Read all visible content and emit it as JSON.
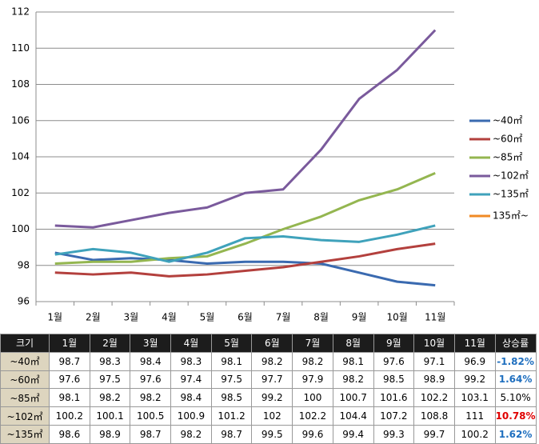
{
  "chart_data": {
    "type": "line",
    "categories": [
      "1월",
      "2월",
      "3월",
      "4월",
      "5월",
      "6월",
      "7월",
      "8월",
      "9월",
      "10월",
      "11월"
    ],
    "series": [
      {
        "name": "~40㎡",
        "color": "#3a6ab0",
        "values": [
          98.7,
          98.3,
          98.4,
          98.3,
          98.1,
          98.2,
          98.2,
          98.1,
          97.6,
          97.1,
          96.9
        ]
      },
      {
        "name": "~60㎡",
        "color": "#b3403d",
        "values": [
          97.6,
          97.5,
          97.6,
          97.4,
          97.5,
          97.7,
          97.9,
          98.2,
          98.5,
          98.9,
          99.2
        ]
      },
      {
        "name": "~85㎡",
        "color": "#94b650",
        "values": [
          98.1,
          98.2,
          98.2,
          98.4,
          98.5,
          99.2,
          100,
          100.7,
          101.6,
          102.2,
          103.1
        ]
      },
      {
        "name": "~102㎡",
        "color": "#7a5a9c",
        "values": [
          100.2,
          100.1,
          100.5,
          100.9,
          101.2,
          102,
          102.2,
          104.4,
          107.2,
          108.8,
          111
        ]
      },
      {
        "name": "~135㎡",
        "color": "#3fa2bb",
        "values": [
          98.6,
          98.9,
          98.7,
          98.2,
          98.7,
          99.5,
          99.6,
          99.4,
          99.3,
          99.7,
          100.2
        ]
      },
      {
        "name": "135㎡~",
        "color": "#f08a24",
        "values": [
          null,
          null,
          null,
          null,
          null,
          null,
          null,
          null,
          null,
          null,
          null
        ]
      }
    ],
    "ylim": [
      96,
      112
    ],
    "yticks": [
      96,
      98,
      100,
      102,
      104,
      106,
      108,
      110,
      112
    ],
    "grid": true,
    "legend": "right"
  },
  "table": {
    "header": [
      "크기",
      "1월",
      "2월",
      "3월",
      "4월",
      "5월",
      "6월",
      "7월",
      "8월",
      "9월",
      "10월",
      "11월",
      "상승률"
    ],
    "rows": [
      [
        "~40㎡",
        98.7,
        98.3,
        98.4,
        98.3,
        98.1,
        98.2,
        98.2,
        98.1,
        97.6,
        97.1,
        96.9,
        "-1.82%"
      ],
      [
        "~60㎡",
        97.6,
        97.5,
        97.6,
        97.4,
        97.5,
        97.7,
        97.9,
        98.2,
        98.5,
        98.9,
        99.2,
        "1.64%"
      ],
      [
        "~85㎡",
        98.1,
        98.2,
        98.2,
        98.4,
        98.5,
        99.2,
        100,
        100.7,
        101.6,
        102.2,
        103.1,
        "5.10%"
      ],
      [
        "~102㎡",
        100.2,
        100.1,
        100.5,
        100.9,
        101.2,
        102,
        102.2,
        104.4,
        107.2,
        108.8,
        111,
        "10.78%"
      ],
      [
        "~135㎡",
        98.6,
        98.9,
        98.7,
        98.2,
        98.7,
        99.5,
        99.6,
        99.4,
        99.3,
        99.7,
        100.2,
        "1.62%"
      ]
    ]
  }
}
